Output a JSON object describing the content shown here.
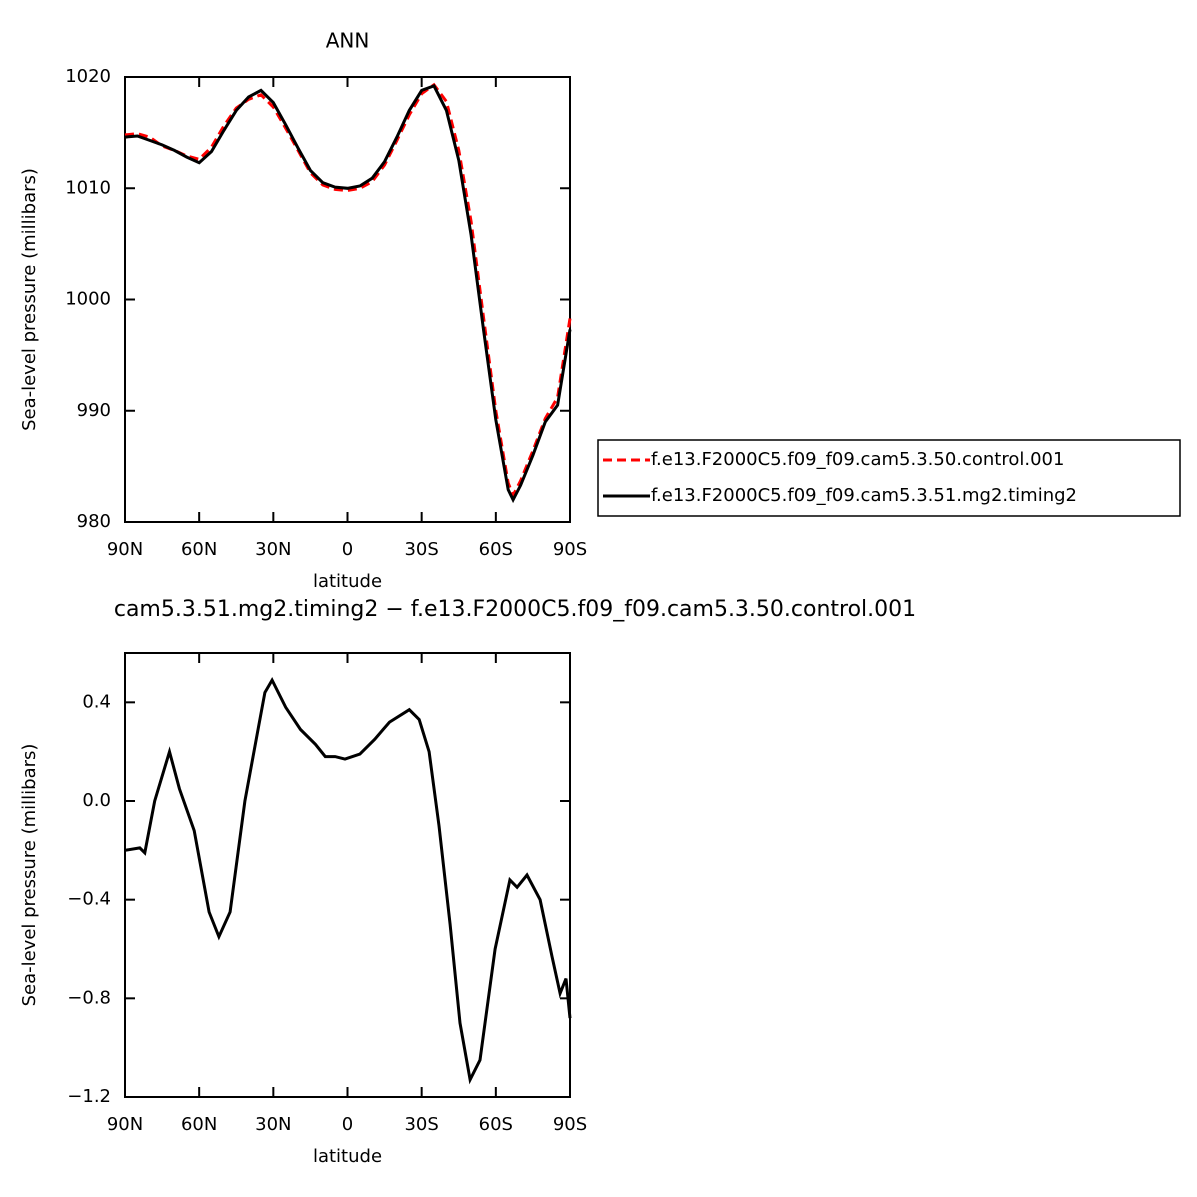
{
  "chart_data": [
    {
      "type": "line",
      "title": "ANN",
      "xlabel": "latitude",
      "ylabel": "Sea-level pressure (millibars)",
      "xlim": [
        90,
        -90
      ],
      "ylim": [
        980,
        1020
      ],
      "xticks": [
        {
          "value": 90,
          "label": "90N"
        },
        {
          "value": 60,
          "label": "60N"
        },
        {
          "value": 30,
          "label": "30N"
        },
        0,
        {
          "value": -30,
          "label": "30S"
        },
        {
          "value": -60,
          "label": "60S"
        },
        {
          "value": -90,
          "label": "90S"
        }
      ],
      "yticks": [
        980,
        990,
        1000,
        1010,
        1020
      ],
      "legend": "right",
      "x": [
        90,
        85,
        80,
        75,
        70,
        65,
        60,
        55,
        50,
        45,
        40,
        35,
        30,
        25,
        20,
        15,
        10,
        5,
        0,
        -5,
        -10,
        -15,
        -20,
        -25,
        -30,
        -35,
        -40,
        -45,
        -50,
        -55,
        -60,
        -65,
        -67,
        -70,
        -75,
        -80,
        -85,
        -90
      ],
      "series": [
        {
          "name": "f.e13.F2000C5.f09_f09.cam5.3.50.control.001",
          "color": "#ff0000",
          "dash": true,
          "values": [
            1014.8,
            1014.9,
            1014.6,
            1013.8,
            1013.4,
            1012.9,
            1012.6,
            1013.7,
            1015.6,
            1017.2,
            1018.0,
            1018.4,
            1017.3,
            1015.4,
            1013.4,
            1011.4,
            1010.3,
            1009.9,
            1009.8,
            1010.0,
            1010.6,
            1012.1,
            1014.3,
            1016.6,
            1018.5,
            1019.3,
            1017.8,
            1013.4,
            1007.0,
            998.4,
            990.0,
            983.5,
            982.4,
            983.7,
            986.4,
            989.3,
            991.2,
            998.3
          ]
        },
        {
          "name": "f.e13.F2000C5.f09_f09.cam5.3.51.mg2.timing2",
          "color": "#000000",
          "dash": false,
          "values": [
            1014.6,
            1014.7,
            1014.3,
            1013.9,
            1013.4,
            1012.8,
            1012.3,
            1013.3,
            1015.2,
            1017.0,
            1018.2,
            1018.8,
            1017.7,
            1015.7,
            1013.6,
            1011.6,
            1010.5,
            1010.1,
            1010.0,
            1010.2,
            1010.9,
            1012.4,
            1014.6,
            1017.0,
            1018.8,
            1019.2,
            1017.0,
            1012.5,
            1005.8,
            997.3,
            989.2,
            982.9,
            982.0,
            983.3,
            986.0,
            989.0,
            990.5,
            997.3
          ]
        }
      ]
    },
    {
      "type": "line",
      "title": "cam5.3.51.mg2.timing2 − f.e13.F2000C5.f09_f09.cam5.3.50.control.001",
      "xlabel": "latitude",
      "ylabel": "Sea-level pressure (millibars)",
      "xlim": [
        90,
        -90
      ],
      "ylim": [
        -1.2,
        0.6
      ],
      "xticks": [
        {
          "value": 90,
          "label": "90N"
        },
        {
          "value": 60,
          "label": "60N"
        },
        {
          "value": 30,
          "label": "30N"
        },
        0,
        {
          "value": -30,
          "label": "30S"
        },
        {
          "value": -60,
          "label": "60S"
        },
        {
          "value": -90,
          "label": "90S"
        }
      ],
      "yticks": [
        {
          "value": -1.2,
          "label": "−1.2"
        },
        {
          "value": -0.8,
          "label": "−0.8"
        },
        {
          "value": -0.4,
          "label": "−0.4"
        },
        {
          "value": 0,
          "label": "0.0"
        },
        0.4
      ],
      "x": [
        90,
        84,
        82,
        78,
        72,
        68,
        62,
        56,
        52,
        47.5,
        41.5,
        36,
        33.4,
        30.5,
        25,
        19,
        13,
        9,
        5,
        1,
        -5,
        -11,
        -17,
        -25,
        -29,
        -33,
        -37,
        -41.5,
        -45.5,
        -49.6,
        -53.6,
        -59.7,
        -65.7,
        -68.6,
        -72.6,
        -77.9,
        -82.7,
        -86,
        -88.4,
        -90
      ],
      "series": [
        {
          "color": "#000000",
          "dash": false,
          "values": [
            -0.2,
            -0.19,
            -0.21,
            0.0,
            0.2,
            0.05,
            -0.12,
            -0.45,
            -0.55,
            -0.45,
            0.0,
            0.3,
            0.44,
            0.49,
            0.38,
            0.29,
            0.23,
            0.18,
            0.18,
            0.17,
            0.19,
            0.25,
            0.32,
            0.37,
            0.33,
            0.2,
            -0.1,
            -0.5,
            -0.9,
            -1.13,
            -1.05,
            -0.6,
            -0.32,
            -0.35,
            -0.3,
            -0.4,
            -0.63,
            -0.78,
            -0.72,
            -0.88
          ]
        }
      ]
    }
  ]
}
